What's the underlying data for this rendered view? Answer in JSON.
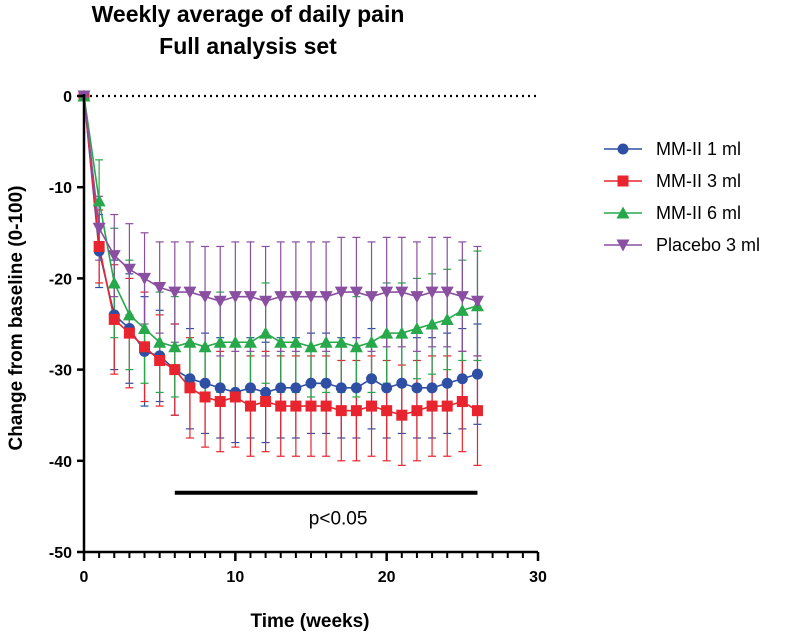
{
  "chart_data": {
    "type": "line",
    "title_lines": [
      "Weekly average of daily pain",
      "Full analysis set"
    ],
    "xlabel": "Time (weeks)",
    "ylabel": "Change from baseline (0-100)",
    "xlim": [
      0,
      30
    ],
    "ylim": [
      -50,
      0
    ],
    "xticks": [
      0,
      10,
      20,
      30
    ],
    "yticks": [
      0,
      -10,
      -20,
      -30,
      -40,
      -50
    ],
    "x_tick_labels": [
      "0",
      "10",
      "20",
      "30"
    ],
    "y_tick_labels": [
      "0",
      "-10",
      "-20",
      "-30",
      "-40",
      "-50"
    ],
    "reference_line_y": 0,
    "legend_position": "right",
    "x": [
      0,
      1,
      2,
      3,
      4,
      5,
      6,
      7,
      8,
      9,
      10,
      11,
      12,
      13,
      14,
      15,
      16,
      17,
      18,
      19,
      20,
      21,
      22,
      23,
      24,
      25,
      26
    ],
    "series": [
      {
        "name": "MM-II 1 ml",
        "color": "#2e4fa3",
        "marker": "circle",
        "values": [
          0,
          -17,
          -24,
          -25.5,
          -28,
          -28.5,
          -30,
          -31,
          -31.5,
          -32,
          -32.5,
          -32,
          -32.5,
          -32,
          -32,
          -31.5,
          -31.5,
          -32,
          -32,
          -31,
          -32,
          -31.5,
          -32,
          -32,
          -31.5,
          -31,
          -30.5
        ],
        "error": [
          0,
          4,
          6,
          6,
          6,
          5,
          5,
          5.5,
          5.5,
          5.5,
          5.5,
          5.5,
          5.5,
          5.5,
          5.5,
          5.5,
          5.5,
          5.5,
          5.5,
          5.5,
          5.5,
          5.5,
          5.5,
          5.5,
          5.5,
          5.5,
          5.5
        ]
      },
      {
        "name": "MM-II 3 ml",
        "color": "#e8252e",
        "marker": "square",
        "values": [
          0,
          -16.5,
          -24.5,
          -26,
          -27.5,
          -29,
          -30,
          -32,
          -33,
          -33.5,
          -33,
          -34,
          -33.5,
          -34,
          -34,
          -34,
          -34,
          -34.5,
          -34.5,
          -34,
          -34.5,
          -35,
          -34.5,
          -34,
          -34,
          -33.5,
          -34.5
        ],
        "error": [
          0,
          4,
          6,
          6,
          6,
          5,
          5,
          5.5,
          5.5,
          5.5,
          5.5,
          5.5,
          5.5,
          5.5,
          5.5,
          5.5,
          5.5,
          5.5,
          5.5,
          5.5,
          5.5,
          5.5,
          5.5,
          5.5,
          5.5,
          5.5,
          6
        ]
      },
      {
        "name": "MM-II 6 ml",
        "color": "#27a84a",
        "marker": "triangle-up",
        "values": [
          0,
          -11.5,
          -20.5,
          -24,
          -25.5,
          -27,
          -27.5,
          -27,
          -27.5,
          -27,
          -27,
          -27,
          -26,
          -27,
          -27,
          -27.5,
          -27,
          -27,
          -27.5,
          -27,
          -26,
          -26,
          -25.5,
          -25,
          -24.5,
          -23.5,
          -23
        ],
        "error": [
          0,
          4.5,
          6,
          6,
          6,
          5.5,
          5.5,
          5.5,
          5.5,
          5.5,
          5.5,
          5.5,
          5.5,
          5.5,
          5.5,
          5.5,
          5.5,
          5.5,
          5.5,
          5.5,
          5.5,
          5.5,
          5.5,
          5.5,
          5.5,
          5.5,
          6
        ]
      },
      {
        "name": "Placebo 3 ml",
        "color": "#8a4fa0",
        "marker": "triangle-down",
        "values": [
          0,
          -14.5,
          -17.5,
          -19,
          -20,
          -21,
          -21.5,
          -21.5,
          -22,
          -22.5,
          -22,
          -22,
          -22.5,
          -22,
          -22,
          -22,
          -22,
          -21.5,
          -21.5,
          -22,
          -21.5,
          -21.5,
          -22,
          -21.5,
          -21.5,
          -22,
          -22.5
        ],
        "error": [
          0,
          3.5,
          4.5,
          5,
          5,
          5,
          5.5,
          5.5,
          5.5,
          6,
          6,
          6,
          6,
          6,
          6,
          6,
          6,
          6,
          6,
          6,
          6,
          6,
          6,
          6,
          6,
          6,
          6
        ]
      }
    ],
    "annotation": {
      "text": "p<0.05",
      "x_start": 6,
      "x_end": 26,
      "y": -43.5
    }
  }
}
